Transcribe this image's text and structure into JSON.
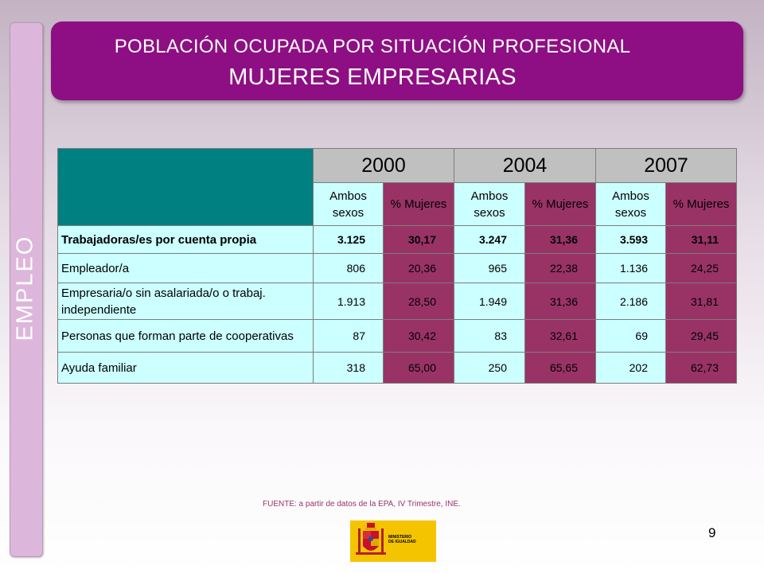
{
  "sidebar": {
    "label": "EMPLEO"
  },
  "header": {
    "title_line1": "POBLACIÓN OCUPADA POR SITUACIÓN PROFESIONAL",
    "title_line2": "MUJERES EMPRESARIAS"
  },
  "table": {
    "years": [
      "2000",
      "2004",
      "2007"
    ],
    "sub_ambos_line1": "Ambos",
    "sub_ambos_line2": "sexos",
    "sub_pct": "% Mujeres",
    "rows": [
      {
        "label": "Trabajadoras/es por cuenta propia",
        "values": [
          "3.125",
          "30,17",
          "3.247",
          "31,36",
          "3.593",
          "31,11"
        ]
      },
      {
        "label": "Empleador/a",
        "values": [
          "806",
          "20,36",
          "965",
          "22,38",
          "1.136",
          "24,25"
        ]
      },
      {
        "label": "Empresaria/o sin asalariada/o o trabaj.",
        "label2": "independiente",
        "values": [
          "1.913",
          "28,50",
          "1.949",
          "31,36",
          "2.186",
          "31,81"
        ]
      },
      {
        "label": "Personas que forman parte de cooperativas",
        "values": [
          "87",
          "30,42",
          "83",
          "32,61",
          "69",
          "29,45"
        ]
      },
      {
        "label": "Ayuda familiar",
        "values": [
          "318",
          "65,00",
          "250",
          "65,65",
          "202",
          "62,73"
        ]
      }
    ]
  },
  "source": "FUENTE: a partir de datos de la EPA, IV Trimestre, INE.",
  "logo": {
    "line1": "MINISTERIO",
    "line2": "DE IGUALDAD",
    "color": "#f5c400"
  },
  "page_number": "9",
  "colors": {
    "title_bg": "#8e0f84",
    "corner": "#008080",
    "light_cell": "#ccffff",
    "dark_cell": "#993366",
    "year_cell": "#c0c0c0"
  }
}
